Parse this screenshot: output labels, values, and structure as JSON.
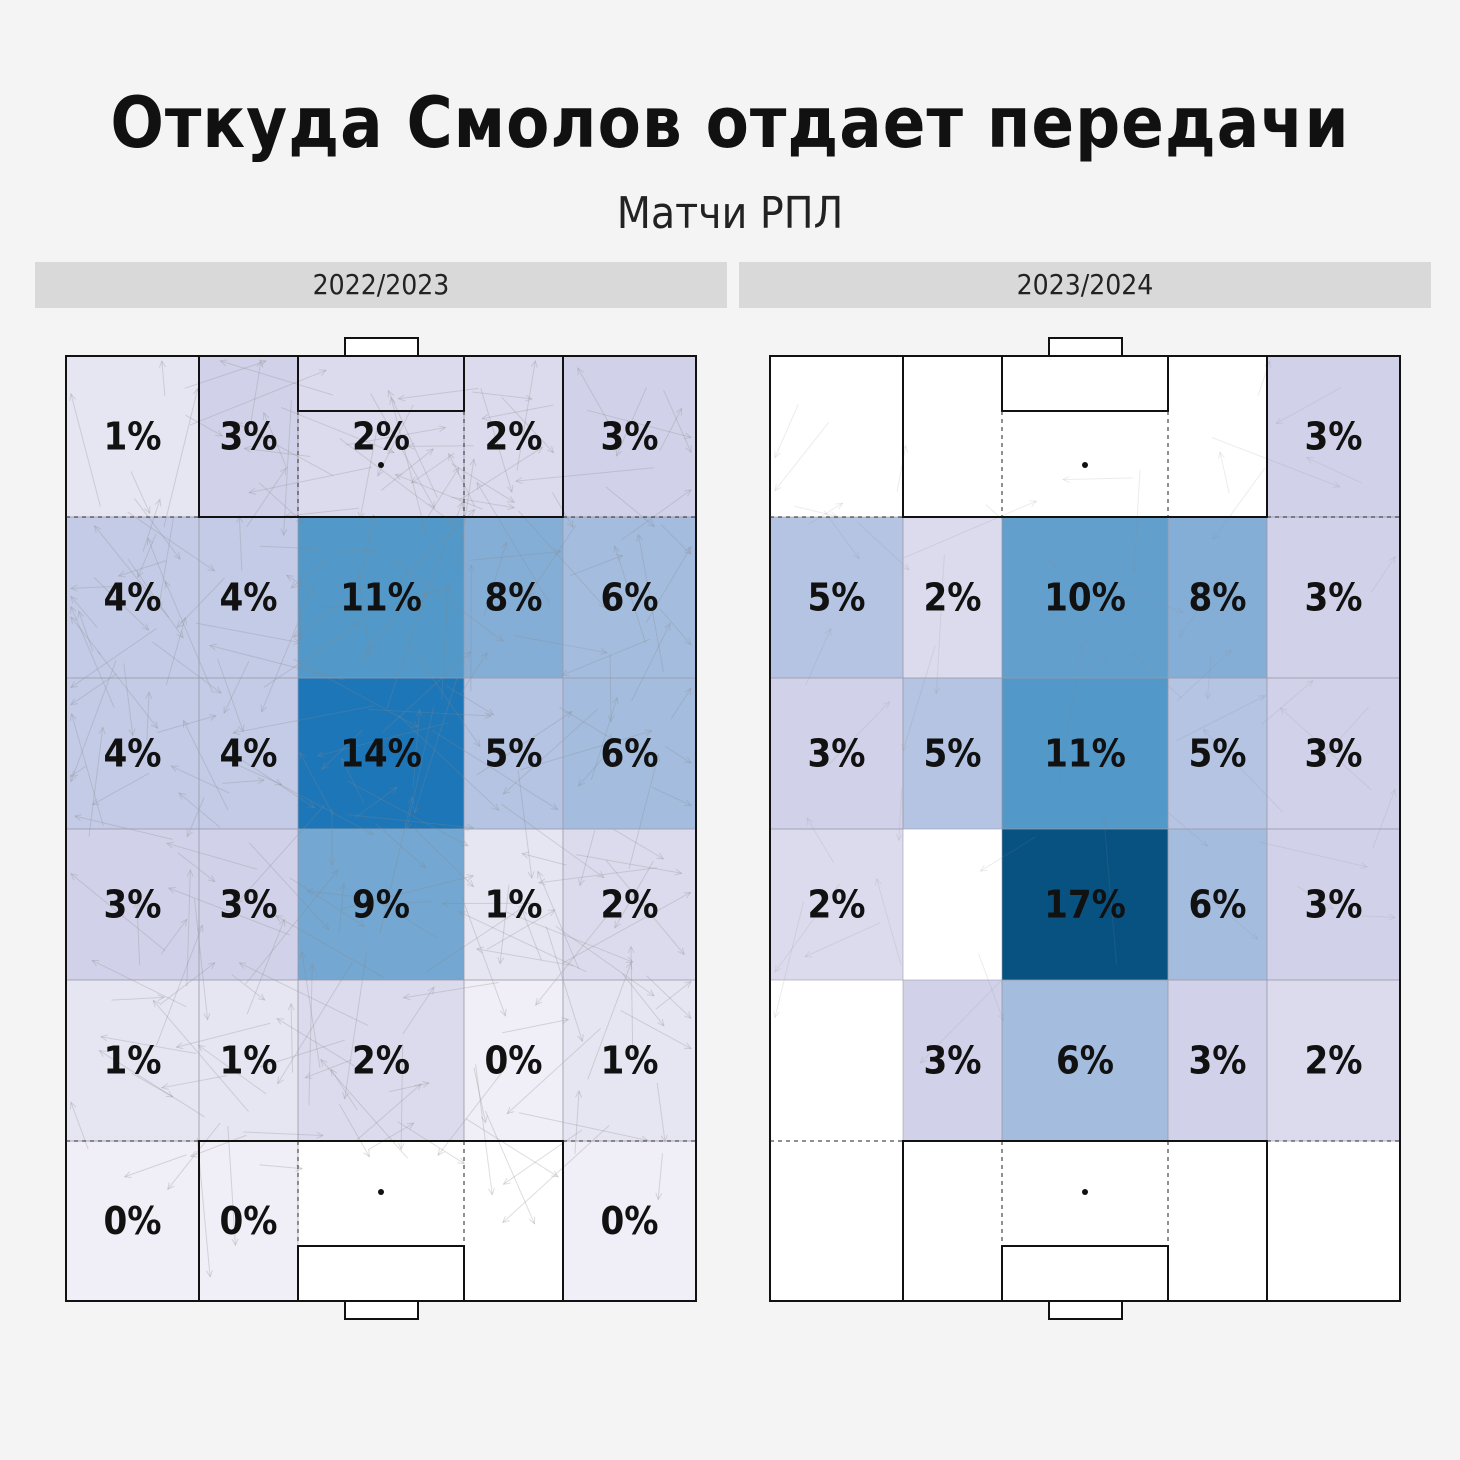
{
  "title": "Откуда Смолов отдает передачи",
  "subtitle": "Матчи РПЛ",
  "chart_data": [
    {
      "type": "heatmap",
      "season": "2022/2023",
      "grid": [
        [
          "1%",
          "3%",
          "2%",
          "2%",
          "3%"
        ],
        [
          "4%",
          "4%",
          "11%",
          "8%",
          "6%"
        ],
        [
          "4%",
          "4%",
          "14%",
          "5%",
          "6%"
        ],
        [
          "3%",
          "3%",
          "9%",
          "1%",
          "2%"
        ],
        [
          "1%",
          "1%",
          "2%",
          "0%",
          "1%"
        ],
        [
          "0%",
          "0%",
          null,
          null,
          "0%"
        ]
      ],
      "values": [
        [
          1,
          3,
          2,
          2,
          3
        ],
        [
          4,
          4,
          11,
          8,
          6
        ],
        [
          4,
          4,
          14,
          5,
          6
        ],
        [
          3,
          3,
          9,
          1,
          2
        ],
        [
          1,
          1,
          2,
          0,
          1
        ],
        [
          0,
          0,
          null,
          null,
          0
        ]
      ]
    },
    {
      "type": "heatmap",
      "season": "2023/2024",
      "grid": [
        [
          null,
          null,
          null,
          null,
          "3%"
        ],
        [
          "5%",
          "2%",
          "10%",
          "8%",
          "3%"
        ],
        [
          "3%",
          "5%",
          "11%",
          "5%",
          "3%"
        ],
        [
          "2%",
          null,
          "17%",
          "6%",
          "3%"
        ],
        [
          null,
          "3%",
          "6%",
          "3%",
          "2%"
        ],
        [
          null,
          null,
          null,
          null,
          null
        ]
      ],
      "values": [
        [
          null,
          null,
          null,
          null,
          3
        ],
        [
          5,
          2,
          10,
          8,
          3
        ],
        [
          3,
          5,
          11,
          5,
          3
        ],
        [
          2,
          null,
          17,
          6,
          3
        ],
        [
          null,
          3,
          6,
          3,
          2
        ],
        [
          null,
          null,
          null,
          null,
          null
        ]
      ]
    }
  ]
}
